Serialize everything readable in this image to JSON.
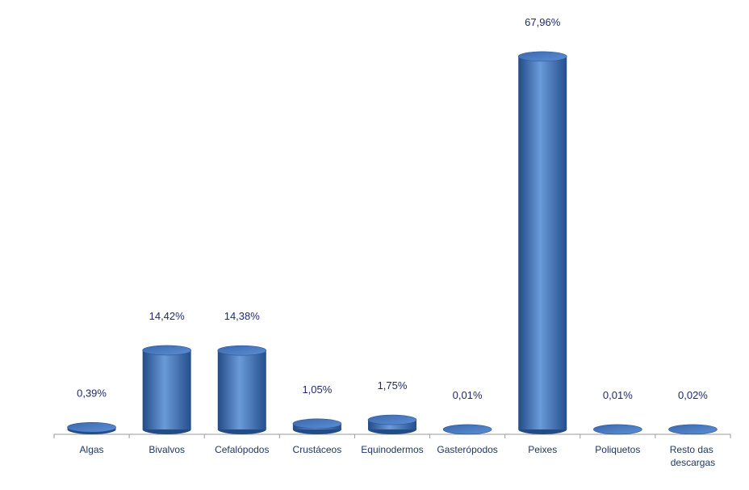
{
  "chart_data": {
    "type": "bar3d",
    "categories": [
      "Algas",
      "Bivalvos",
      "Cefalópodos",
      "Crustáceos",
      "Equinodermos",
      "Gasterópodos",
      "Peixes",
      "Poliquetos",
      "Resto das descargas"
    ],
    "values": [
      0.39,
      14.42,
      14.38,
      1.05,
      1.75,
      0.01,
      67.96,
      0.01,
      0.02
    ],
    "value_labels": [
      "0,39%",
      "14,42%",
      "14,38%",
      "1,05%",
      "1,75%",
      "0,01%",
      "67,96%",
      "0,01%",
      "0,02%"
    ],
    "color": "#4a7cc4"
  }
}
